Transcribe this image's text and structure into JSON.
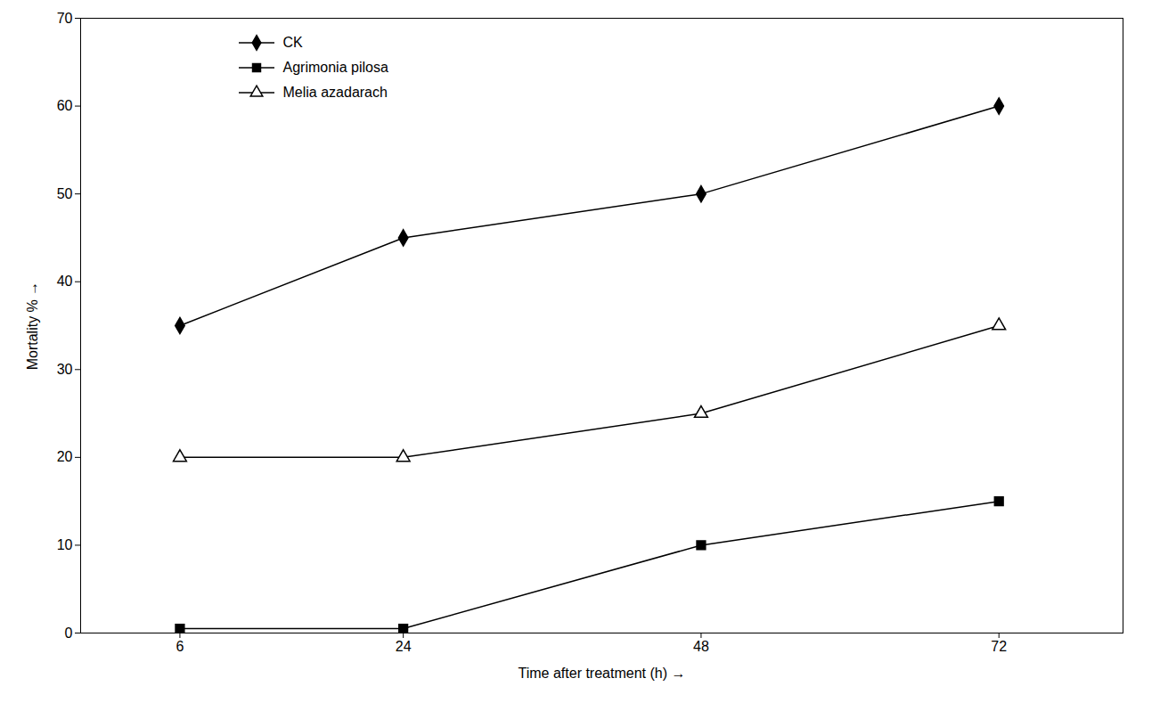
{
  "chart_data": {
    "type": "line",
    "x": [
      6,
      24,
      48,
      72
    ],
    "series": [
      {
        "name": "CK",
        "values": [
          35,
          45,
          50,
          60
        ],
        "color": "#000000",
        "marker": "diamond",
        "line_style": "solid"
      },
      {
        "name": "Agrimonia pilosa",
        "values": [
          0.5,
          0.5,
          10,
          15
        ],
        "color": "#000000",
        "marker": "square",
        "line_style": "solid"
      },
      {
        "name": "Melia azadarach",
        "values": [
          20,
          20,
          25,
          35
        ],
        "color": "#000000",
        "marker": "triangle-open",
        "line_style": "solid"
      }
    ],
    "xlabel": "Time after treatment (h)",
    "ylabel": "Mortality %",
    "xlim": [
      -2,
      82
    ],
    "xticks": [
      6,
      24,
      48,
      72
    ],
    "ylim": [
      0,
      70
    ],
    "yticks": [
      0,
      10,
      20,
      30,
      40,
      50,
      60,
      70
    ],
    "grid": false,
    "legend": "upper left"
  }
}
